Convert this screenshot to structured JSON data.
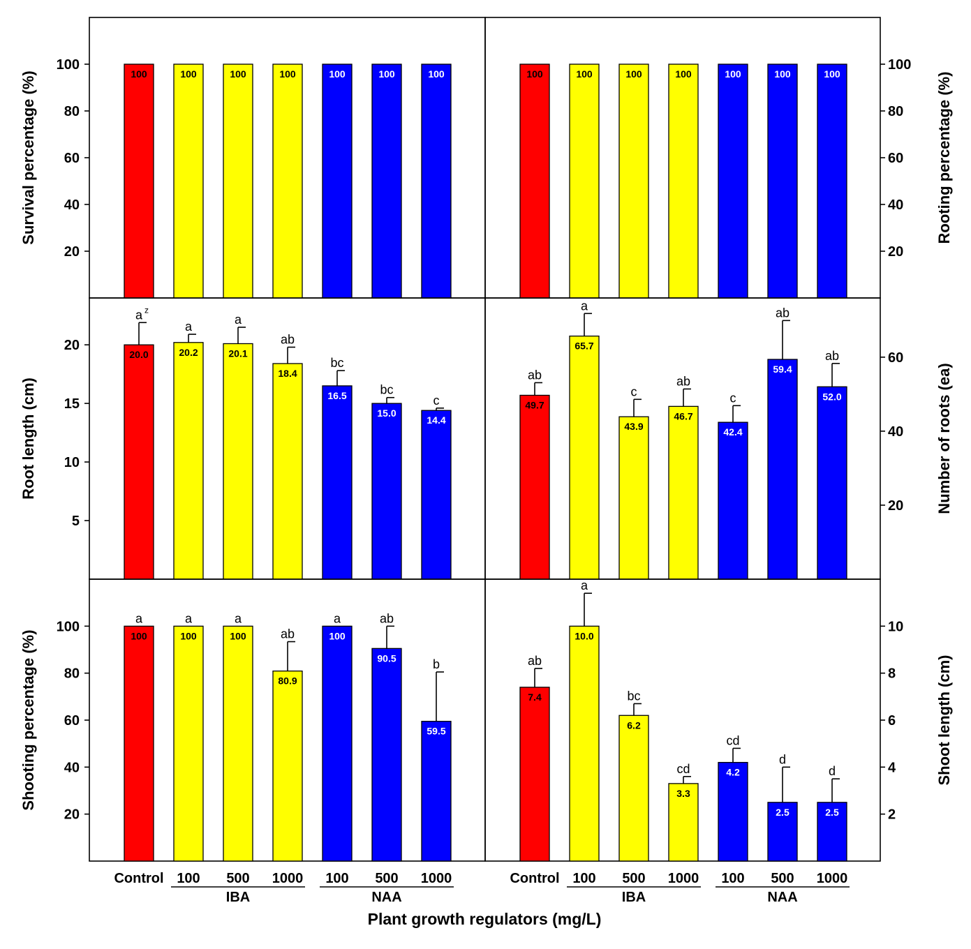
{
  "colors": {
    "control": "#ff0000",
    "iba": "#ffff00",
    "naa": "#0000ff"
  },
  "xlabel": "Plant growth regulators (mg/L)",
  "categories": [
    "Control",
    "100",
    "500",
    "1000",
    "100",
    "500",
    "1000"
  ],
  "category_groups": [
    "control",
    "iba",
    "iba",
    "iba",
    "naa",
    "naa",
    "naa"
  ],
  "groups": [
    {
      "name": "IBA",
      "categories": [
        "100",
        "500",
        "1000"
      ]
    },
    {
      "name": "NAA",
      "categories": [
        "100",
        "500",
        "1000"
      ]
    }
  ],
  "chart_data": [
    {
      "type": "bar",
      "position": "top-left",
      "ylabel": "Survival percentage (%)",
      "ylim": [
        0,
        120
      ],
      "yticks": [
        20,
        40,
        60,
        80,
        100
      ],
      "axis_side": "left",
      "categories": [
        "Control",
        "100",
        "500",
        "1000",
        "100",
        "500",
        "1000"
      ],
      "values": [
        100,
        100,
        100,
        100,
        100,
        100,
        100
      ],
      "value_labels": [
        "100",
        "100",
        "100",
        "100",
        "100",
        "100",
        "100"
      ],
      "errors": [
        0,
        0,
        0,
        0,
        0,
        0,
        0
      ],
      "letters": [
        "",
        "",
        "",
        "",
        "",
        "",
        ""
      ]
    },
    {
      "type": "bar",
      "position": "top-right",
      "ylabel": "Rooting percentage (%)",
      "ylim": [
        0,
        120
      ],
      "yticks": [
        20,
        40,
        60,
        80,
        100
      ],
      "axis_side": "right",
      "categories": [
        "Control",
        "100",
        "500",
        "1000",
        "100",
        "500",
        "1000"
      ],
      "values": [
        100,
        100,
        100,
        100,
        100,
        100,
        100
      ],
      "value_labels": [
        "100",
        "100",
        "100",
        "100",
        "100",
        "100",
        "100"
      ],
      "errors": [
        0,
        0,
        0,
        0,
        0,
        0,
        0
      ],
      "letters": [
        "",
        "",
        "",
        "",
        "",
        "",
        ""
      ]
    },
    {
      "type": "bar",
      "position": "middle-left",
      "ylabel": "Root length (cm)",
      "ylim": [
        0,
        24
      ],
      "yticks": [
        5,
        10,
        15,
        20
      ],
      "axis_side": "left",
      "categories": [
        "Control",
        "100",
        "500",
        "1000",
        "100",
        "500",
        "1000"
      ],
      "values": [
        20.0,
        20.2,
        20.1,
        18.4,
        16.5,
        15.0,
        14.4
      ],
      "value_labels": [
        "20.0",
        "20.2",
        "20.1",
        "18.4",
        "16.5",
        "15.0",
        "14.4"
      ],
      "errors": [
        1.9,
        0.7,
        1.4,
        1.4,
        1.3,
        0.5,
        0.2
      ],
      "letters": [
        "a",
        "a",
        "a",
        "ab",
        "bc",
        "bc",
        "c"
      ],
      "letter_superscript": "z"
    },
    {
      "type": "bar",
      "position": "middle-right",
      "ylabel": "Number of roots (ea)",
      "ylim": [
        0,
        76
      ],
      "yticks": [
        20,
        40,
        60
      ],
      "axis_side": "right",
      "categories": [
        "Control",
        "100",
        "500",
        "1000",
        "100",
        "500",
        "1000"
      ],
      "values": [
        49.7,
        65.7,
        43.9,
        46.7,
        42.4,
        59.4,
        52.0
      ],
      "value_labels": [
        "49.7",
        "65.7",
        "43.9",
        "46.7",
        "42.4",
        "59.4",
        "52.0"
      ],
      "errors": [
        3.4,
        6.1,
        4.7,
        4.7,
        4.5,
        10.5,
        6.3
      ],
      "letters": [
        "ab",
        "a",
        "c",
        "ab",
        "c",
        "ab",
        "ab"
      ]
    },
    {
      "type": "bar",
      "position": "bottom-left",
      "ylabel": "Shooting percentage (%)",
      "ylim": [
        0,
        120
      ],
      "yticks": [
        20,
        40,
        60,
        80,
        100
      ],
      "axis_side": "left",
      "categories": [
        "Control",
        "100",
        "500",
        "1000",
        "100",
        "500",
        "1000"
      ],
      "values": [
        100,
        100,
        100,
        80.9,
        100,
        90.5,
        59.5
      ],
      "value_labels": [
        "100",
        "100",
        "100",
        "80.9",
        "100",
        "90.5",
        "59.5"
      ],
      "errors": [
        0,
        0,
        0,
        12.5,
        0,
        9.5,
        21.0
      ],
      "letters": [
        "a",
        "a",
        "a",
        "ab",
        "a",
        "ab",
        "b"
      ]
    },
    {
      "type": "bar",
      "position": "bottom-right",
      "ylabel": "Shoot length (cm)",
      "ylim": [
        0,
        12
      ],
      "yticks": [
        2,
        4,
        6,
        8,
        10
      ],
      "axis_side": "right",
      "categories": [
        "Control",
        "100",
        "500",
        "1000",
        "100",
        "500",
        "1000"
      ],
      "values": [
        7.4,
        10.0,
        6.2,
        3.3,
        4.2,
        2.5,
        2.5
      ],
      "value_labels": [
        "7.4",
        "10.0",
        "6.2",
        "3.3",
        "4.2",
        "2.5",
        "2.5"
      ],
      "errors": [
        0.8,
        1.4,
        0.5,
        0.3,
        0.6,
        1.5,
        1.0
      ],
      "letters": [
        "ab",
        "a",
        "bc",
        "cd",
        "cd",
        "d",
        "d"
      ]
    }
  ]
}
